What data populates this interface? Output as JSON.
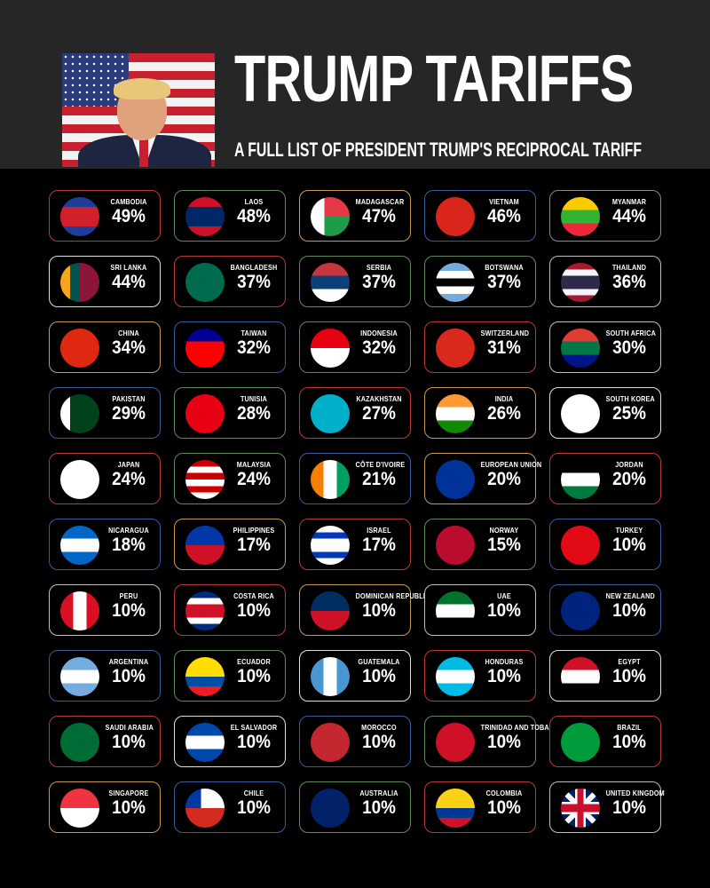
{
  "header": {
    "title": "TRUMP TARIFFS",
    "subtitle": "A FULL LIST OF PRESIDENT TRUMP'S RECIPROCAL TARIFF"
  },
  "countries": [
    {
      "name": "CAMBODIA",
      "pct": "49%",
      "border": "#b83a3a",
      "flag": [
        "#1d3f9a",
        "#d2202a",
        "#d2202a",
        "#1d3f9a"
      ]
    },
    {
      "name": "LAOS",
      "pct": "48%",
      "border": "#5f8a5a",
      "flag": [
        "#ce1126",
        "#002868",
        "#002868",
        "#ce1126"
      ]
    },
    {
      "name": "MADAGASCAR",
      "pct": "47%",
      "border": "#c89a50",
      "flag": [
        "#fff",
        "#e63946",
        "#e63946",
        "#1f9c48"
      ],
      "mode": "mg"
    },
    {
      "name": "VIETNAM",
      "pct": "46%",
      "border": "#3b5a9a",
      "flag": [
        "#da251d"
      ]
    },
    {
      "name": "MYANMAR",
      "pct": "44%",
      "border": "#8a8a8a",
      "flag": [
        "#fecb00",
        "#34b233",
        "#ea2839"
      ]
    },
    {
      "name": "SRI LANKA",
      "pct": "44%",
      "border": "#e0e0e0",
      "flag": [
        "#f7a51c",
        "#00534e",
        "#8d153a",
        "#8d153a"
      ],
      "mode": "v"
    },
    {
      "name": "BANGLADESH",
      "pct": "37%",
      "border": "#b83a3a",
      "flag": [
        "#006a4e"
      ]
    },
    {
      "name": "SERBIA",
      "pct": "37%",
      "border": "#5f8a5a",
      "flag": [
        "#c6363c",
        "#0c4076",
        "#fff"
      ]
    },
    {
      "name": "BOTSWANA",
      "pct": "37%",
      "border": "#5f8a5a",
      "flag": [
        "#75aadb",
        "#fff",
        "#000",
        "#fff",
        "#75aadb"
      ]
    },
    {
      "name": "THAILAND",
      "pct": "36%",
      "border": "#c0c0c0",
      "flag": [
        "#a51931",
        "#f4f5f8",
        "#2d2a4a",
        "#2d2a4a",
        "#f4f5f8",
        "#a51931"
      ]
    },
    {
      "name": "CHINA",
      "pct": "34%",
      "border": "#c89a50",
      "flag": [
        "#de2910"
      ]
    },
    {
      "name": "TAIWAN",
      "pct": "32%",
      "border": "#3b5a9a",
      "flag": [
        "#000095",
        "#fe0000",
        "#fe0000"
      ]
    },
    {
      "name": "INDONESIA",
      "pct": "32%",
      "border": "#6a7a6a",
      "flag": [
        "#e70011",
        "#fff"
      ]
    },
    {
      "name": "SWITZERLAND",
      "pct": "31%",
      "border": "#b83a3a",
      "flag": [
        "#da291c"
      ]
    },
    {
      "name": "SOUTH AFRICA",
      "pct": "30%",
      "border": "#c0c0c0",
      "flag": [
        "#e03c31",
        "#007749",
        "#001489"
      ]
    },
    {
      "name": "PAKISTAN",
      "pct": "29%",
      "border": "#3b5a9a",
      "flag": [
        "#fff",
        "#01411c",
        "#01411c",
        "#01411c"
      ],
      "mode": "v"
    },
    {
      "name": "TUNISIA",
      "pct": "28%",
      "border": "#5f8a5a",
      "flag": [
        "#e70013"
      ]
    },
    {
      "name": "KAZAKHSTAN",
      "pct": "27%",
      "border": "#b83a3a",
      "flag": [
        "#00afca"
      ]
    },
    {
      "name": "INDIA",
      "pct": "26%",
      "border": "#c89a50",
      "flag": [
        "#ff9933",
        "#fff",
        "#138808"
      ]
    },
    {
      "name": "SOUTH KOREA",
      "pct": "25%",
      "border": "#e0e0e0",
      "flag": [
        "#fff"
      ]
    },
    {
      "name": "JAPAN",
      "pct": "24%",
      "border": "#b83a3a",
      "flag": [
        "#fff"
      ]
    },
    {
      "name": "MALAYSIA",
      "pct": "24%",
      "border": "#5f8a5a",
      "flag": [
        "#cc0001",
        "#fff",
        "#cc0001",
        "#fff",
        "#cc0001",
        "#fff"
      ]
    },
    {
      "name": "CÔTE D'IVOIRE",
      "pct": "21%",
      "border": "#3b5a9a",
      "flag": [
        "#f77f00",
        "#fff",
        "#009e60"
      ],
      "mode": "v"
    },
    {
      "name": "EUROPEAN UNION",
      "pct": "20%",
      "border": "#c89a50",
      "flag": [
        "#003399"
      ]
    },
    {
      "name": "JORDAN",
      "pct": "20%",
      "border": "#b83a3a",
      "flag": [
        "#000",
        "#fff",
        "#007a3d"
      ]
    },
    {
      "name": "NICARAGUA",
      "pct": "18%",
      "border": "#3b5a9a",
      "flag": [
        "#0067c6",
        "#fff",
        "#0067c6"
      ]
    },
    {
      "name": "PHILIPPINES",
      "pct": "17%",
      "border": "#c89a50",
      "flag": [
        "#0038a8",
        "#ce1126"
      ]
    },
    {
      "name": "ISRAEL",
      "pct": "17%",
      "border": "#b83a3a",
      "flag": [
        "#fff",
        "#0038b8",
        "#fff",
        "#fff",
        "#0038b8",
        "#fff"
      ]
    },
    {
      "name": "NORWAY",
      "pct": "15%",
      "border": "#5f8a5a",
      "flag": [
        "#ba0c2f"
      ]
    },
    {
      "name": "TURKEY",
      "pct": "10%",
      "border": "#3b5a9a",
      "flag": [
        "#e30a17"
      ]
    },
    {
      "name": "PERU",
      "pct": "10%",
      "border": "#c0c0c0",
      "flag": [
        "#d91023",
        "#fff",
        "#d91023"
      ],
      "mode": "v"
    },
    {
      "name": "COSTA RICA",
      "pct": "10%",
      "border": "#b83a3a",
      "flag": [
        "#002b7f",
        "#fff",
        "#ce1126",
        "#ce1126",
        "#fff",
        "#002b7f"
      ]
    },
    {
      "name": "DOMINICAN REPUBLIC",
      "pct": "10%",
      "border": "#c89a50",
      "flag": [
        "#002d62",
        "#ce1126"
      ]
    },
    {
      "name": "UAE",
      "pct": "10%",
      "border": "#c0c0c0",
      "flag": [
        "#00732f",
        "#fff",
        "#000"
      ]
    },
    {
      "name": "NEW ZEALAND",
      "pct": "10%",
      "border": "#3b5a9a",
      "flag": [
        "#00247d"
      ]
    },
    {
      "name": "ARGENTINA",
      "pct": "10%",
      "border": "#3b5a9a",
      "flag": [
        "#74acdf",
        "#fff",
        "#74acdf"
      ]
    },
    {
      "name": "ECUADOR",
      "pct": "10%",
      "border": "#5f8a5a",
      "flag": [
        "#ffdd00",
        "#ffdd00",
        "#034ea2",
        "#ed1c24"
      ]
    },
    {
      "name": "GUATEMALA",
      "pct": "10%",
      "border": "#e0e0e0",
      "flag": [
        "#4997d0",
        "#fff",
        "#4997d0"
      ],
      "mode": "v"
    },
    {
      "name": "HONDURAS",
      "pct": "10%",
      "border": "#b83a3a",
      "flag": [
        "#00bce4",
        "#fff",
        "#00bce4"
      ]
    },
    {
      "name": "EGYPT",
      "pct": "10%",
      "border": "#e0e0e0",
      "flag": [
        "#ce1126",
        "#fff",
        "#000"
      ]
    },
    {
      "name": "SAUDI ARABIA",
      "pct": "10%",
      "border": "#b83a3a",
      "flag": [
        "#006c35"
      ]
    },
    {
      "name": "EL SALVADOR",
      "pct": "10%",
      "border": "#e0e0e0",
      "flag": [
        "#0047ab",
        "#fff",
        "#0047ab"
      ]
    },
    {
      "name": "MOROCCO",
      "pct": "10%",
      "border": "#3b5a9a",
      "flag": [
        "#c1272d"
      ]
    },
    {
      "name": "TRINIDAD AND TOBAGO",
      "pct": "10%",
      "border": "#5f8a5a",
      "flag": [
        "#ce1126"
      ]
    },
    {
      "name": "BRAZIL",
      "pct": "10%",
      "border": "#b83a3a",
      "flag": [
        "#009c3b"
      ]
    },
    {
      "name": "SINGAPORE",
      "pct": "10%",
      "border": "#c89a50",
      "flag": [
        "#ef3340",
        "#fff"
      ]
    },
    {
      "name": "CHILE",
      "pct": "10%",
      "border": "#3b5a9a",
      "flag": [
        "#0039a6",
        "#fff",
        "#d52b1e",
        "#d52b1e"
      ],
      "mode": "cl"
    },
    {
      "name": "AUSTRALIA",
      "pct": "10%",
      "border": "#5f8a5a",
      "flag": [
        "#012169"
      ]
    },
    {
      "name": "COLOMBIA",
      "pct": "10%",
      "border": "#b83a3a",
      "flag": [
        "#fcd116",
        "#fcd116",
        "#003893",
        "#ce1126"
      ]
    },
    {
      "name": "UNITED KINGDOM",
      "pct": "10%",
      "border": "#c0c0c0",
      "flag": [
        "#012169"
      ],
      "mode": "uk"
    }
  ]
}
